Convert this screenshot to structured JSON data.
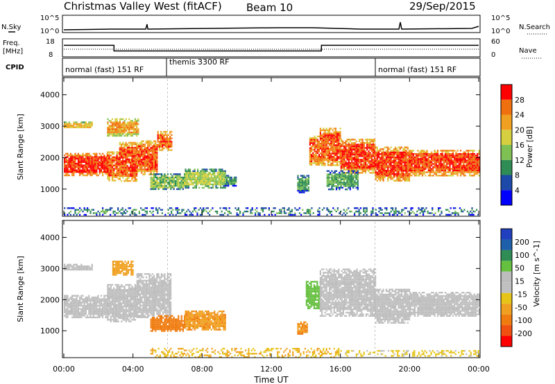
{
  "header": {
    "title": "Christmas Valley West (fitACF)",
    "beam": "Beam 10",
    "date": "29/Sep/2015"
  },
  "strip": {
    "nsky_label": "N.Sky",
    "nsky_ticks": [
      "10^5",
      "10^0"
    ],
    "nsearch_label": "N.Search",
    "nsearch_ticks": [
      "10^5",
      "10^0"
    ],
    "freq_label": [
      "Freq.",
      "[MHz]"
    ],
    "freq_ticks": [
      "18",
      "8"
    ],
    "nave_label": "Nave",
    "nave_ticks": [
      "60",
      "0"
    ],
    "cpid_label": "CPID"
  },
  "cpid_segments": [
    {
      "label": "normal (fast) 151 RF",
      "start": 0,
      "end": 6
    },
    {
      "label": "themis 3300 RF",
      "start": 6,
      "end": 18
    },
    {
      "label": "normal (fast) 151 RF",
      "start": 18,
      "end": 24
    }
  ],
  "frequency_trace": [
    {
      "start": 0,
      "end": 2.9,
      "freq_mhz": 15.0
    },
    {
      "start": 2.9,
      "end": 14.9,
      "freq_mhz": 10.5
    },
    {
      "start": 14.9,
      "end": 24,
      "freq_mhz": 15.0
    }
  ],
  "xaxis": {
    "label": "Time UT",
    "ticks": [
      "00:00",
      "04:00",
      "08:00",
      "12:00",
      "16:00",
      "20:00",
      "00:00"
    ],
    "range_hours": [
      0,
      24
    ]
  },
  "colors": {
    "power": [
      "#0000ff",
      "#1d4aa8",
      "#2f8c55",
      "#7fc055",
      "#d6d040",
      "#f0a020",
      "#f07010",
      "#ff0000"
    ],
    "velocity": [
      "#ff0000",
      "#f05010",
      "#f07c10",
      "#f0a020",
      "#e6c418",
      "#c0c0c0",
      "#bcbcbc",
      "#66c040",
      "#2f8c55",
      "#1d5fa8",
      "#2040c0"
    ]
  },
  "chart_data": [
    {
      "type": "heatmap",
      "panel": "power",
      "xlabel": "",
      "ylabel": "Slant Range [km]",
      "xlim": [
        0,
        24
      ],
      "ylim": [
        180,
        4500
      ],
      "yticks": [
        "1000",
        "2000",
        "3000",
        "4000"
      ],
      "colorbar": {
        "label": "Power [dB]",
        "ticks": [
          "4",
          "8",
          "12",
          "16",
          "20",
          "24",
          "28"
        ],
        "range": [
          0,
          32
        ]
      },
      "regions": [
        {
          "t0": 0.0,
          "t1": 2.5,
          "r_low": 1450,
          "r_high": 2150,
          "value": 29
        },
        {
          "t0": 2.5,
          "t1": 3.2,
          "r_low": 1300,
          "r_high": 2200,
          "value": 27
        },
        {
          "t0": 3.2,
          "t1": 4.2,
          "r_low": 1250,
          "r_high": 2500,
          "value": 27
        },
        {
          "t0": 4.2,
          "t1": 5.4,
          "r_low": 1450,
          "r_high": 2550,
          "value": 27
        },
        {
          "t0": 5.4,
          "t1": 6.2,
          "r_low": 2250,
          "r_high": 2850,
          "value": 26
        },
        {
          "t0": 2.5,
          "t1": 4.3,
          "r_low": 2700,
          "r_high": 3250,
          "value": 22
        },
        {
          "t0": 0.0,
          "t1": 1.6,
          "r_low": 2950,
          "r_high": 3150,
          "value": 20
        },
        {
          "t0": 5.0,
          "t1": 7.0,
          "r_low": 1000,
          "r_high": 1500,
          "value": 14
        },
        {
          "t0": 7.0,
          "t1": 9.3,
          "r_low": 1050,
          "r_high": 1650,
          "value": 16
        },
        {
          "t0": 9.3,
          "t1": 10.0,
          "r_low": 1100,
          "r_high": 1450,
          "value": 10
        },
        {
          "t0": 14.2,
          "t1": 14.8,
          "r_low": 1750,
          "r_high": 2700,
          "value": 26
        },
        {
          "t0": 14.8,
          "t1": 16.0,
          "r_low": 1750,
          "r_high": 2950,
          "value": 27
        },
        {
          "t0": 16.0,
          "t1": 18.0,
          "r_low": 1500,
          "r_high": 2600,
          "value": 28
        },
        {
          "t0": 18.0,
          "t1": 20.0,
          "r_low": 1250,
          "r_high": 2350,
          "value": 28
        },
        {
          "t0": 20.0,
          "t1": 24.0,
          "r_low": 1450,
          "r_high": 2250,
          "value": 28
        },
        {
          "t0": 15.2,
          "t1": 17.0,
          "r_low": 1000,
          "r_high": 1600,
          "value": 12
        },
        {
          "t0": 13.5,
          "t1": 14.2,
          "r_low": 900,
          "r_high": 1450,
          "value": 12
        },
        {
          "t0": 0.0,
          "t1": 24.0,
          "r_low": 180,
          "r_high": 420,
          "value": 10
        }
      ]
    },
    {
      "type": "heatmap",
      "panel": "velocity",
      "xlabel": "Time UT",
      "ylabel": "Slant Range [km]",
      "xlim": [
        0,
        24
      ],
      "ylim": [
        180,
        4500
      ],
      "yticks": [
        "1000",
        "2000",
        "3000",
        "4000"
      ],
      "colorbar": {
        "label": "Velocity [m s^-1]",
        "ticks": [
          "200",
          "100",
          "50",
          "15",
          "-15",
          "-50",
          "-100",
          "-200"
        ],
        "range": [
          -250,
          250
        ]
      },
      "regions": [
        {
          "t0": 0.0,
          "t1": 2.5,
          "r_low": 1450,
          "r_high": 2150,
          "value": 0
        },
        {
          "t0": 2.5,
          "t1": 4.2,
          "r_low": 1300,
          "r_high": 2500,
          "value": 0
        },
        {
          "t0": 4.2,
          "t1": 6.2,
          "r_low": 1450,
          "r_high": 2850,
          "value": 0
        },
        {
          "t0": 2.8,
          "t1": 4.0,
          "r_low": 2800,
          "r_high": 3250,
          "value": -40
        },
        {
          "t0": 0.0,
          "t1": 1.6,
          "r_low": 2950,
          "r_high": 3150,
          "value": 0
        },
        {
          "t0": 5.0,
          "t1": 7.0,
          "r_low": 1000,
          "r_high": 1500,
          "value": -70
        },
        {
          "t0": 7.0,
          "t1": 9.3,
          "r_low": 1050,
          "r_high": 1650,
          "value": -45
        },
        {
          "t0": 14.0,
          "t1": 14.8,
          "r_low": 1700,
          "r_high": 2600,
          "value": 40
        },
        {
          "t0": 14.8,
          "t1": 18.0,
          "r_low": 1500,
          "r_high": 3000,
          "value": 0
        },
        {
          "t0": 18.0,
          "t1": 20.0,
          "r_low": 1250,
          "r_high": 2350,
          "value": 0
        },
        {
          "t0": 20.0,
          "t1": 24.0,
          "r_low": 1450,
          "r_high": 2250,
          "value": 0
        },
        {
          "t0": 13.5,
          "t1": 14.1,
          "r_low": 900,
          "r_high": 1300,
          "value": -50
        },
        {
          "t0": 5.0,
          "t1": 16.0,
          "r_low": 180,
          "r_high": 450,
          "value": -30
        },
        {
          "t0": 16.0,
          "t1": 24.0,
          "r_low": 180,
          "r_high": 380,
          "value": -20
        }
      ]
    }
  ]
}
